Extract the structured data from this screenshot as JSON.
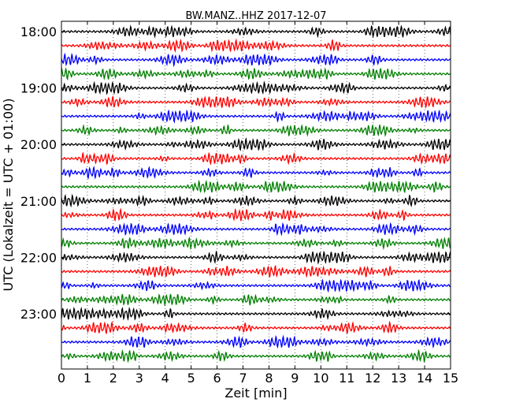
{
  "chart_data": {
    "type": "line",
    "title": "BW.MANZ..HHZ 2017-12-07",
    "xlabel": "Zeit  [min]",
    "ylabel": "UTC (Lokalzeit = UTC + 01:00)",
    "xlim": [
      0,
      15
    ],
    "x_ticks": [
      "0",
      "1",
      "2",
      "3",
      "4",
      "5",
      "6",
      "7",
      "8",
      "9",
      "10",
      "11",
      "12",
      "13",
      "14",
      "15"
    ],
    "y_tick_labels": [
      "18:00",
      "19:00",
      "20:00",
      "21:00",
      "22:00",
      "23:00"
    ],
    "y_tick_rows": [
      0,
      4,
      8,
      12,
      16,
      20
    ],
    "trace_count": 24,
    "trace_interval_min": 15,
    "trace_colors": [
      "#000000",
      "#ff0000",
      "#0000ff",
      "#008000"
    ],
    "grid": "vertical dotted lines at each minute"
  }
}
